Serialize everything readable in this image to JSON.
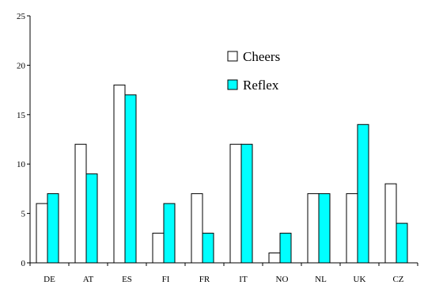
{
  "chart_data": {
    "type": "bar",
    "categories": [
      "DE",
      "AT",
      "ES",
      "FI",
      "FR",
      "IT",
      "NO",
      "NL",
      "UK",
      "CZ"
    ],
    "series": [
      {
        "name": "Cheers",
        "values": [
          6,
          12,
          18,
          3,
          7,
          12,
          1,
          7,
          7,
          8
        ],
        "color": "#ffffff"
      },
      {
        "name": "Reflex",
        "values": [
          7,
          9,
          17,
          6,
          3,
          12,
          3,
          7,
          14,
          4
        ],
        "color": "#00ffff"
      }
    ],
    "ylim": [
      0,
      25
    ],
    "yticks": [
      0,
      5,
      10,
      15,
      20,
      25
    ],
    "ytick_labels": [
      "0",
      "5",
      "10",
      "15",
      "20",
      "25"
    ],
    "grid": false,
    "legend_position": "top-right",
    "bar_outline_color": "#000000"
  }
}
